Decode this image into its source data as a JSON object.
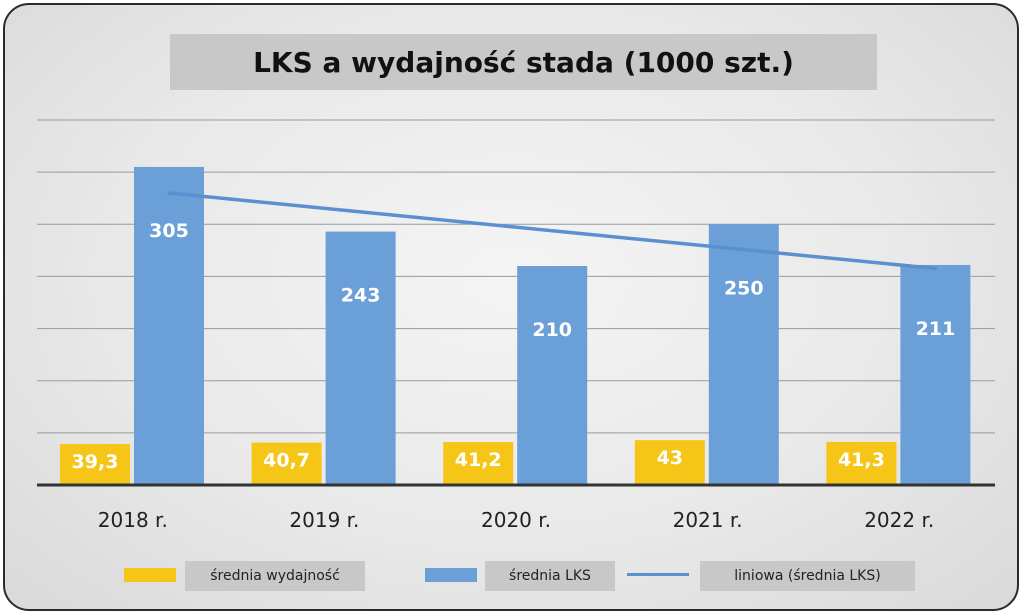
{
  "chart_data": {
    "type": "bar",
    "title": "LKS a wydajność stada (1000 szt.)",
    "categories": [
      "2018 r.",
      "2019 r.",
      "2020 r.",
      "2021 r.",
      "2022 r."
    ],
    "series": [
      {
        "name": "średnia wydajność",
        "values": [
          39.3,
          40.7,
          41.2,
          43,
          41.3
        ],
        "labels": [
          "39,3",
          "40,7",
          "41,2",
          "43",
          "41,3"
        ],
        "color": "#f5c518"
      },
      {
        "name": "średnia LKS",
        "values": [
          305,
          243,
          210,
          250,
          211
        ],
        "labels": [
          "305",
          "243",
          "210",
          "250",
          "211"
        ],
        "color": "#6a9fd8"
      }
    ],
    "trendline": {
      "name": "liniowa (średnia LKS)",
      "of_series": "średnia LKS",
      "type": "linear",
      "color": "#5b8fcf"
    },
    "ylim": [
      0,
      350
    ],
    "grid": true,
    "legend": "bottom"
  }
}
